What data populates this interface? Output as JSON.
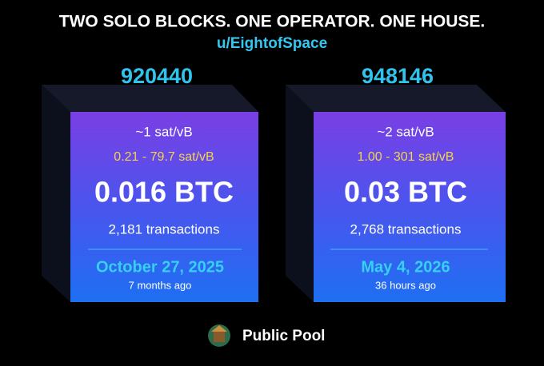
{
  "header": {
    "title": "TWO SOLO BLOCKS. ONE OPERATOR. ONE HOUSE.",
    "subtitle": "u/EightofSpace"
  },
  "blocks": [
    {
      "height": "920440",
      "fee": "~1 sat/vB",
      "fee_range": "0.21 - 79.7 sat/vB",
      "reward": "0.016 BTC",
      "transactions": "2,181 transactions",
      "date": "October 27, 2025",
      "ago": "7 months ago"
    },
    {
      "height": "948146",
      "fee": "~2 sat/vB",
      "fee_range": "1.00 - 301 sat/vB",
      "reward": "0.03 BTC",
      "transactions": "2,768 transactions",
      "date": "May 4, 2026",
      "ago": "36 hours ago"
    }
  ],
  "footer": {
    "label": "Public Pool"
  }
}
